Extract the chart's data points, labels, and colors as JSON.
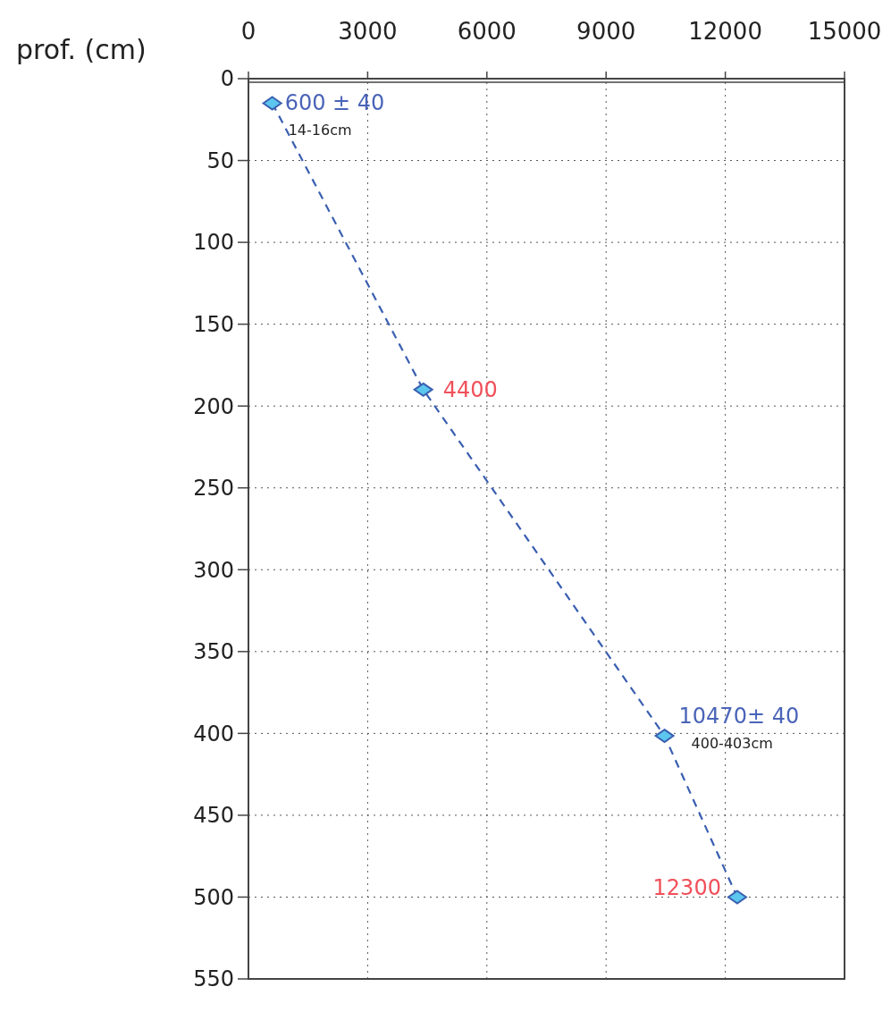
{
  "chart_data": {
    "type": "line",
    "ylabel": "prof. (cm)",
    "x": [
      600,
      4400,
      10470,
      12300
    ],
    "series": [
      {
        "color": "#3a5fb0",
        "values": [
          15,
          190,
          401.5,
          500
        ]
      }
    ],
    "xlim": [
      0,
      15000
    ],
    "xticks": [
      0,
      3000,
      6000,
      9000,
      12000,
      15000
    ],
    "ylim": [
      550,
      0
    ],
    "yticks": [
      0,
      50,
      100,
      150,
      200,
      250,
      300,
      350,
      400,
      450,
      500,
      550
    ],
    "grid": true,
    "marker": "diamond",
    "line_style": "dashed",
    "annotations": [
      {
        "text": "600 ± 40",
        "x": 600,
        "y": 15
      },
      {
        "text": "14-16cm",
        "x": 600,
        "y": 15
      },
      {
        "text": "4400",
        "x": 4400,
        "y": 190
      },
      {
        "text": "10470± 40",
        "x": 10470,
        "y": 401.5
      },
      {
        "text": "400-403cm",
        "x": 10470,
        "y": 401.5
      },
      {
        "text": "12300",
        "x": 12300,
        "y": 500
      }
    ]
  }
}
